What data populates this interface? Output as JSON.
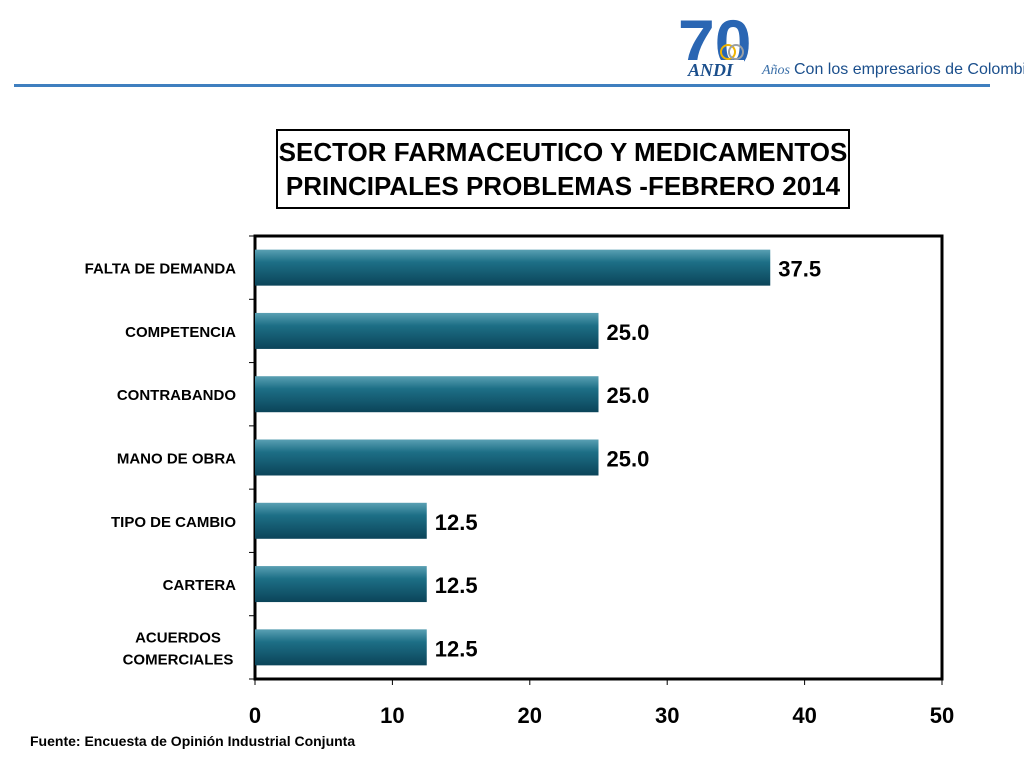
{
  "logo": {
    "number": "70",
    "brand": "ANDI",
    "years_word": "Años",
    "tagline": "Con los empresarios de Colombia",
    "colors": {
      "primary": "#2a66b3",
      "light": "#4aa3df"
    }
  },
  "title": {
    "line1": "SECTOR FARMACEUTICO Y MEDICAMENTOS",
    "line2": "PRINCIPALES PROBLEMAS -FEBRERO 2014"
  },
  "source": "Fuente: Encuesta de Opinión Industrial Conjunta",
  "chart_data": {
    "type": "bar",
    "orientation": "horizontal",
    "categories": [
      "FALTA DE DEMANDA",
      "COMPETENCIA",
      "CONTRABANDO",
      "MANO DE OBRA",
      "TIPO DE CAMBIO",
      "CARTERA",
      "ACUERDOS COMERCIALES"
    ],
    "category_lines": [
      [
        "FALTA DE DEMANDA"
      ],
      [
        "COMPETENCIA"
      ],
      [
        "CONTRABANDO"
      ],
      [
        "MANO DE OBRA"
      ],
      [
        "TIPO DE CAMBIO"
      ],
      [
        "CARTERA"
      ],
      [
        "ACUERDOS",
        "COMERCIALES"
      ]
    ],
    "values": [
      37.5,
      25.0,
      25.0,
      25.0,
      12.5,
      12.5,
      12.5
    ],
    "value_labels": [
      "37.5",
      "25.0",
      "25.0",
      "25.0",
      "12.5",
      "12.5",
      "12.5"
    ],
    "xlim": [
      0,
      50
    ],
    "xticks": [
      0,
      10,
      20,
      30,
      40,
      50
    ],
    "xtick_labels": [
      "0",
      "10",
      "20",
      "30",
      "40",
      "50"
    ],
    "grid": false,
    "legend": "none",
    "bar_color": "#0e5870"
  }
}
